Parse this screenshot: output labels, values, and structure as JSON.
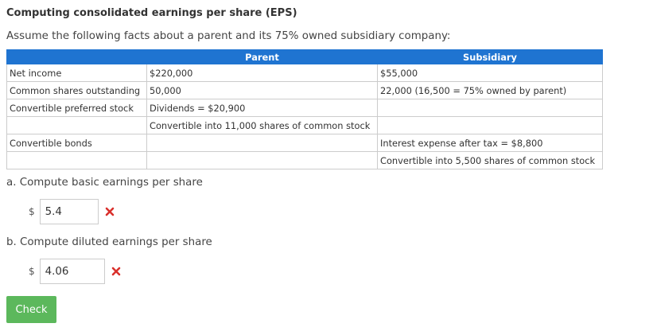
{
  "title": "Computing consolidated earnings per share (EPS)",
  "intro": "Assume the following facts about a parent and its 75% owned subsidiary company:",
  "table": {
    "headers": [
      "",
      "Parent",
      "Subsidiary"
    ],
    "rows": [
      [
        "Net income",
        "$220,000",
        "$55,000"
      ],
      [
        "Common shares outstanding",
        "50,000",
        "22,000 (16,500 = 75% owned by parent)"
      ],
      [
        "Convertible preferred stock",
        "Dividends = $20,900",
        ""
      ],
      [
        "",
        "Convertible into 11,000 shares of common stock",
        ""
      ],
      [
        "Convertible bonds",
        "",
        "Interest expense after tax = $8,800"
      ],
      [
        "",
        "",
        "Convertible into 5,500 shares of common stock"
      ]
    ]
  },
  "questions": {
    "a": {
      "label": "a. Compute basic earnings per share",
      "currency": "$",
      "value": "5.4",
      "status": "incorrect",
      "status_icon": "x-mark-icon"
    },
    "b": {
      "label": "b. Compute diluted earnings per share",
      "currency": "$",
      "value": "4.06",
      "status": "incorrect",
      "status_icon": "x-mark-icon"
    }
  },
  "check_button": "Check",
  "colors": {
    "header_bg": "#1f74d1",
    "wrong": "#d9302c",
    "check_button": "#5cb85c"
  }
}
